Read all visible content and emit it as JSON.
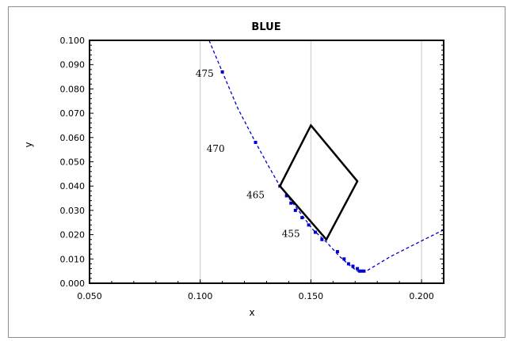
{
  "chart_data": {
    "type": "scatter",
    "title": "BLUE",
    "xlabel": "x",
    "ylabel": "y",
    "xlim": [
      0.05,
      0.21
    ],
    "ylim": [
      0.0,
      0.1
    ],
    "x_ticks": [
      "0.050",
      "0.100",
      "0.150",
      "0.200"
    ],
    "x_tick_values": [
      0.05,
      0.1,
      0.15,
      0.2
    ],
    "y_ticks": [
      "0.000",
      "0.010",
      "0.020",
      "0.030",
      "0.040",
      "0.050",
      "0.060",
      "0.070",
      "0.080",
      "0.090",
      "0.100"
    ],
    "y_tick_values": [
      0.0,
      0.01,
      0.02,
      0.03,
      0.04,
      0.05,
      0.06,
      0.07,
      0.08,
      0.09,
      0.1
    ],
    "grid": {
      "x": true,
      "y": false
    },
    "colors": {
      "locus": "#0000cc",
      "quad": "#000000"
    },
    "series": [
      {
        "style": "dashed-line",
        "x": [
          0.104,
          0.11,
          0.117,
          0.125,
          0.131,
          0.136,
          0.141,
          0.146,
          0.151,
          0.157,
          0.163,
          0.168,
          0.171,
          0.173,
          0.175,
          0.186,
          0.199,
          0.21
        ],
        "y": [
          0.1,
          0.087,
          0.072,
          0.058,
          0.048,
          0.04,
          0.034,
          0.028,
          0.022,
          0.017,
          0.011,
          0.007,
          0.005,
          0.005,
          0.005,
          0.011,
          0.017,
          0.022
        ]
      },
      {
        "style": "markers",
        "x": [
          0.11,
          0.125,
          0.136,
          0.139,
          0.141,
          0.143,
          0.146,
          0.149,
          0.152,
          0.155,
          0.162,
          0.165,
          0.167,
          0.169,
          0.171,
          0.172,
          0.173,
          0.174
        ],
        "y": [
          0.087,
          0.058,
          0.04,
          0.036,
          0.033,
          0.03,
          0.027,
          0.024,
          0.021,
          0.018,
          0.013,
          0.01,
          0.008,
          0.007,
          0.006,
          0.005,
          0.005,
          0.005
        ]
      },
      {
        "style": "polygon",
        "x": [
          0.15,
          0.171,
          0.157,
          0.136
        ],
        "y": [
          0.065,
          0.042,
          0.018,
          0.04
        ]
      }
    ],
    "annotations": [
      {
        "text": "475",
        "x": 0.102,
        "y": 0.085
      },
      {
        "text": "470",
        "x": 0.107,
        "y": 0.054
      },
      {
        "text": "465",
        "x": 0.125,
        "y": 0.035
      },
      {
        "text": "455",
        "x": 0.141,
        "y": 0.019
      }
    ]
  }
}
